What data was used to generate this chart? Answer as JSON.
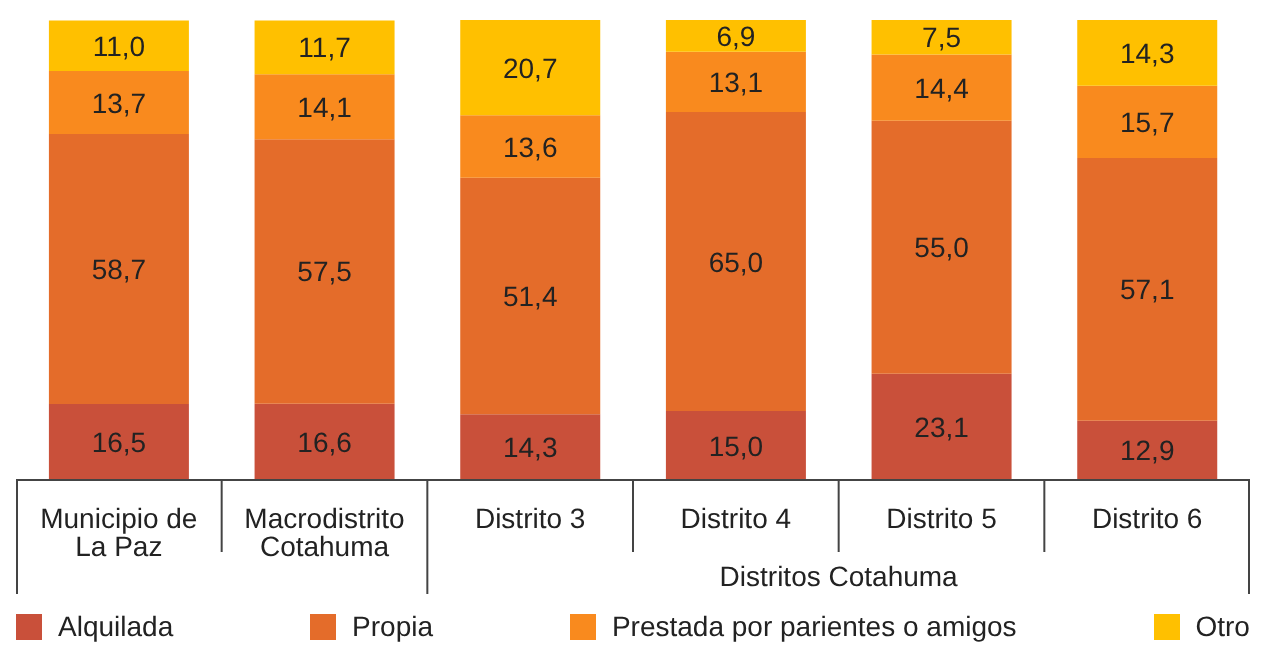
{
  "chart_data": {
    "type": "bar",
    "stacked": true,
    "categories": [
      "Municipio de La Paz",
      "Macrodistrito Cotahuma",
      "Distrito 3",
      "Distrito 4",
      "Distrito 5",
      "Distrito 6"
    ],
    "series": [
      {
        "name": "Alquilada",
        "color": "#c9503a",
        "values": [
          16.5,
          16.6,
          14.3,
          15.0,
          23.1,
          12.9
        ],
        "value_labels": [
          "16,5",
          "16,6",
          "14,3",
          "15,0",
          "23,1",
          "12,9"
        ]
      },
      {
        "name": "Propia",
        "color": "#e46c2a",
        "values": [
          58.7,
          57.5,
          51.4,
          65.0,
          55.0,
          57.1
        ],
        "value_labels": [
          "58,7",
          "57,5",
          "51,4",
          "65,0",
          "55,0",
          "57,1"
        ]
      },
      {
        "name": "Prestada por parientes o amigos",
        "color": "#f98a1e",
        "values": [
          13.7,
          14.1,
          13.6,
          13.1,
          14.4,
          15.7
        ],
        "value_labels": [
          "13,7",
          "14,1",
          "13,6",
          "13,1",
          "14,4",
          "15,7"
        ]
      },
      {
        "name": "Otro",
        "color": "#ffc000",
        "values": [
          11.0,
          11.7,
          20.7,
          6.9,
          7.5,
          14.3
        ],
        "value_labels": [
          "11,0",
          "11,7",
          "20,7",
          "6,9",
          "7,5",
          "14,3"
        ]
      }
    ],
    "annotations": [
      "Distritos Cotahuma"
    ],
    "legend": "bottom"
  }
}
